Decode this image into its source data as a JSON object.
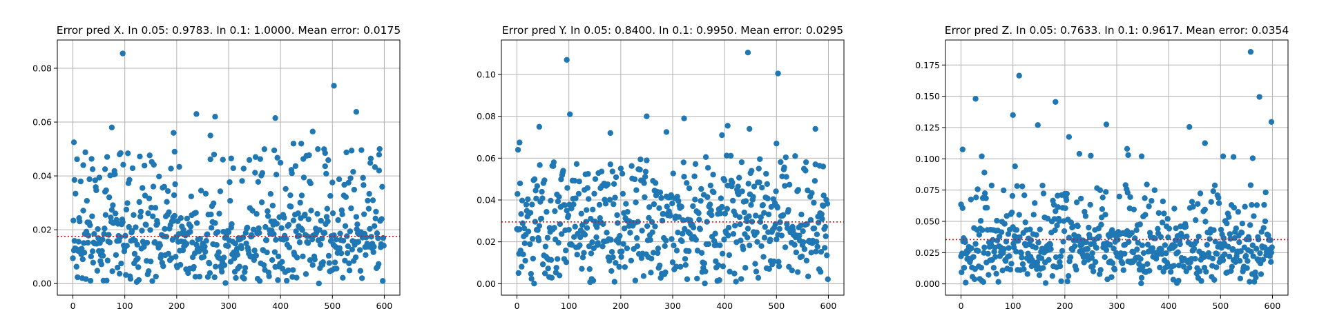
{
  "figure": {
    "background": "#ffffff",
    "point_color": "#1f77b4",
    "mean_line_color": "#ff0000",
    "grid_color": "#b0b0b0"
  },
  "chart_data": [
    {
      "type": "scatter",
      "title": "Error pred X. In 0.05: 0.9783. In 0.1: 1.0000. Mean error: 0.0175",
      "xlabel": "",
      "ylabel": "",
      "xlim": [
        -30,
        630
      ],
      "ylim": [
        -0.0043,
        0.0905
      ],
      "xticks": [
        0,
        100,
        200,
        300,
        400,
        500,
        600
      ],
      "xtick_labels": [
        "0",
        "100",
        "200",
        "300",
        "400",
        "500",
        "600"
      ],
      "yticks": [
        0.0,
        0.02,
        0.04,
        0.06,
        0.08
      ],
      "ytick_labels": [
        "0.00",
        "0.02",
        "0.04",
        "0.06",
        "0.08"
      ],
      "grid": true,
      "mean_line": 0.0175,
      "n_points": 600,
      "y_max": 0.05,
      "y_center": 0.015,
      "seed": 11,
      "outliers": [
        {
          "x": 2,
          "y": 0.0525
        },
        {
          "x": 3,
          "y": 0.0385
        },
        {
          "x": 20,
          "y": 0.044
        },
        {
          "x": 38,
          "y": 0.0425
        },
        {
          "x": 62,
          "y": 0.0425
        },
        {
          "x": 75,
          "y": 0.058
        },
        {
          "x": 90,
          "y": 0.048
        },
        {
          "x": 96,
          "y": 0.0855
        },
        {
          "x": 194,
          "y": 0.056
        },
        {
          "x": 196,
          "y": 0.049
        },
        {
          "x": 238,
          "y": 0.063
        },
        {
          "x": 265,
          "y": 0.055
        },
        {
          "x": 274,
          "y": 0.062
        },
        {
          "x": 305,
          "y": 0.0465
        },
        {
          "x": 388,
          "y": 0.0495
        },
        {
          "x": 390,
          "y": 0.0615
        },
        {
          "x": 425,
          "y": 0.052
        },
        {
          "x": 440,
          "y": 0.052
        },
        {
          "x": 462,
          "y": 0.0565
        },
        {
          "x": 486,
          "y": 0.0485
        },
        {
          "x": 503,
          "y": 0.0735
        },
        {
          "x": 546,
          "y": 0.0638
        },
        {
          "x": 590,
          "y": 0.042
        }
      ]
    },
    {
      "type": "scatter",
      "title": "Error pred Y. In 0.05: 0.8400. In 0.1: 0.9950. Mean error: 0.0295",
      "xlabel": "",
      "ylabel": "",
      "xlim": [
        -30,
        630
      ],
      "ylim": [
        -0.0055,
        0.1165
      ],
      "xticks": [
        0,
        100,
        200,
        300,
        400,
        500,
        600
      ],
      "xtick_labels": [
        "0",
        "100",
        "200",
        "300",
        "400",
        "500",
        "600"
      ],
      "yticks": [
        0.0,
        0.02,
        0.04,
        0.06,
        0.08,
        0.1
      ],
      "ytick_labels": [
        "0.00",
        "0.02",
        "0.04",
        "0.06",
        "0.08",
        "0.10"
      ],
      "grid": true,
      "mean_line": 0.0295,
      "n_points": 600,
      "y_max": 0.062,
      "y_center": 0.028,
      "seed": 23,
      "outliers": [
        {
          "x": 2,
          "y": 0.064
        },
        {
          "x": 5,
          "y": 0.0675
        },
        {
          "x": 43,
          "y": 0.075
        },
        {
          "x": 96,
          "y": 0.107
        },
        {
          "x": 102,
          "y": 0.081
        },
        {
          "x": 180,
          "y": 0.072
        },
        {
          "x": 250,
          "y": 0.08
        },
        {
          "x": 288,
          "y": 0.0725
        },
        {
          "x": 322,
          "y": 0.079
        },
        {
          "x": 395,
          "y": 0.071
        },
        {
          "x": 406,
          "y": 0.0755
        },
        {
          "x": 445,
          "y": 0.1105
        },
        {
          "x": 448,
          "y": 0.074
        },
        {
          "x": 500,
          "y": 0.067
        },
        {
          "x": 503,
          "y": 0.1005
        },
        {
          "x": 575,
          "y": 0.074
        },
        {
          "x": 590,
          "y": 0.056
        }
      ]
    },
    {
      "type": "scatter",
      "title": "Error pred Z. In 0.05: 0.7633. In 0.1: 0.9617. Mean error: 0.0354",
      "xlabel": "",
      "ylabel": "",
      "xlim": [
        -30,
        630
      ],
      "ylim": [
        -0.009,
        0.195
      ],
      "xticks": [
        0,
        100,
        200,
        300,
        400,
        500,
        600
      ],
      "xtick_labels": [
        "0",
        "100",
        "200",
        "300",
        "400",
        "500",
        "600"
      ],
      "yticks": [
        0.0,
        0.025,
        0.05,
        0.075,
        0.1,
        0.125,
        0.15,
        0.175
      ],
      "ytick_labels": [
        "0.000",
        "0.025",
        "0.050",
        "0.075",
        "0.100",
        "0.125",
        "0.150",
        "0.175"
      ],
      "grid": true,
      "mean_line": 0.0354,
      "n_points": 600,
      "y_max": 0.08,
      "y_center": 0.028,
      "seed": 37,
      "outliers": [
        {
          "x": 0,
          "y": 0.0635
        },
        {
          "x": 3,
          "y": 0.1075
        },
        {
          "x": 28,
          "y": 0.148
        },
        {
          "x": 40,
          "y": 0.102
        },
        {
          "x": 45,
          "y": 0.089
        },
        {
          "x": 100,
          "y": 0.135
        },
        {
          "x": 104,
          "y": 0.094
        },
        {
          "x": 112,
          "y": 0.1665
        },
        {
          "x": 148,
          "y": 0.127
        },
        {
          "x": 182,
          "y": 0.1455
        },
        {
          "x": 208,
          "y": 0.1175
        },
        {
          "x": 228,
          "y": 0.104
        },
        {
          "x": 250,
          "y": 0.1025
        },
        {
          "x": 280,
          "y": 0.1275
        },
        {
          "x": 320,
          "y": 0.108
        },
        {
          "x": 322,
          "y": 0.103
        },
        {
          "x": 348,
          "y": 0.102
        },
        {
          "x": 440,
          "y": 0.1255
        },
        {
          "x": 470,
          "y": 0.1125
        },
        {
          "x": 505,
          "y": 0.102
        },
        {
          "x": 525,
          "y": 0.1015
        },
        {
          "x": 558,
          "y": 0.1855
        },
        {
          "x": 562,
          "y": 0.1005
        },
        {
          "x": 575,
          "y": 0.1495
        },
        {
          "x": 598,
          "y": 0.1295
        }
      ]
    }
  ]
}
